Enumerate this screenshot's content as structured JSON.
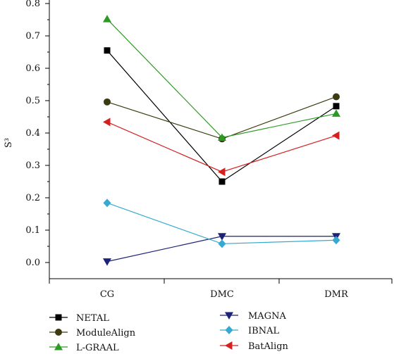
{
  "chart_data": {
    "type": "line",
    "categories": [
      "CG",
      "DMC",
      "DMR"
    ],
    "ylabel": "S³",
    "ylim": [
      -0.05,
      0.8
    ],
    "yticks": [
      "0.0",
      "0.1",
      "0.2",
      "0.3",
      "0.4",
      "0.5",
      "0.6",
      "0.7",
      "0.8"
    ],
    "grid": false,
    "legend_position": "bottom",
    "series": [
      {
        "name": "NETAL",
        "values": [
          0.655,
          0.25,
          0.483
        ],
        "color": "#000000",
        "marker": "square"
      },
      {
        "name": "ModuleAlign",
        "values": [
          0.496,
          0.382,
          0.512
        ],
        "color": "#3b3b0f",
        "marker": "circle"
      },
      {
        "name": "L-GRAAL",
        "values": [
          0.752,
          0.386,
          0.46
        ],
        "color": "#2e9a25",
        "marker": "triangle-up"
      },
      {
        "name": "MAGNA",
        "values": [
          0.003,
          0.081,
          0.081
        ],
        "color": "#1b2278",
        "marker": "triangle-down"
      },
      {
        "name": "IBNAL",
        "values": [
          0.184,
          0.058,
          0.069
        ],
        "color": "#36a9d2",
        "marker": "diamond"
      },
      {
        "name": "BatAlign",
        "values": [
          0.434,
          0.28,
          0.392
        ],
        "color": "#d4201e",
        "marker": "triangle-left"
      }
    ]
  }
}
